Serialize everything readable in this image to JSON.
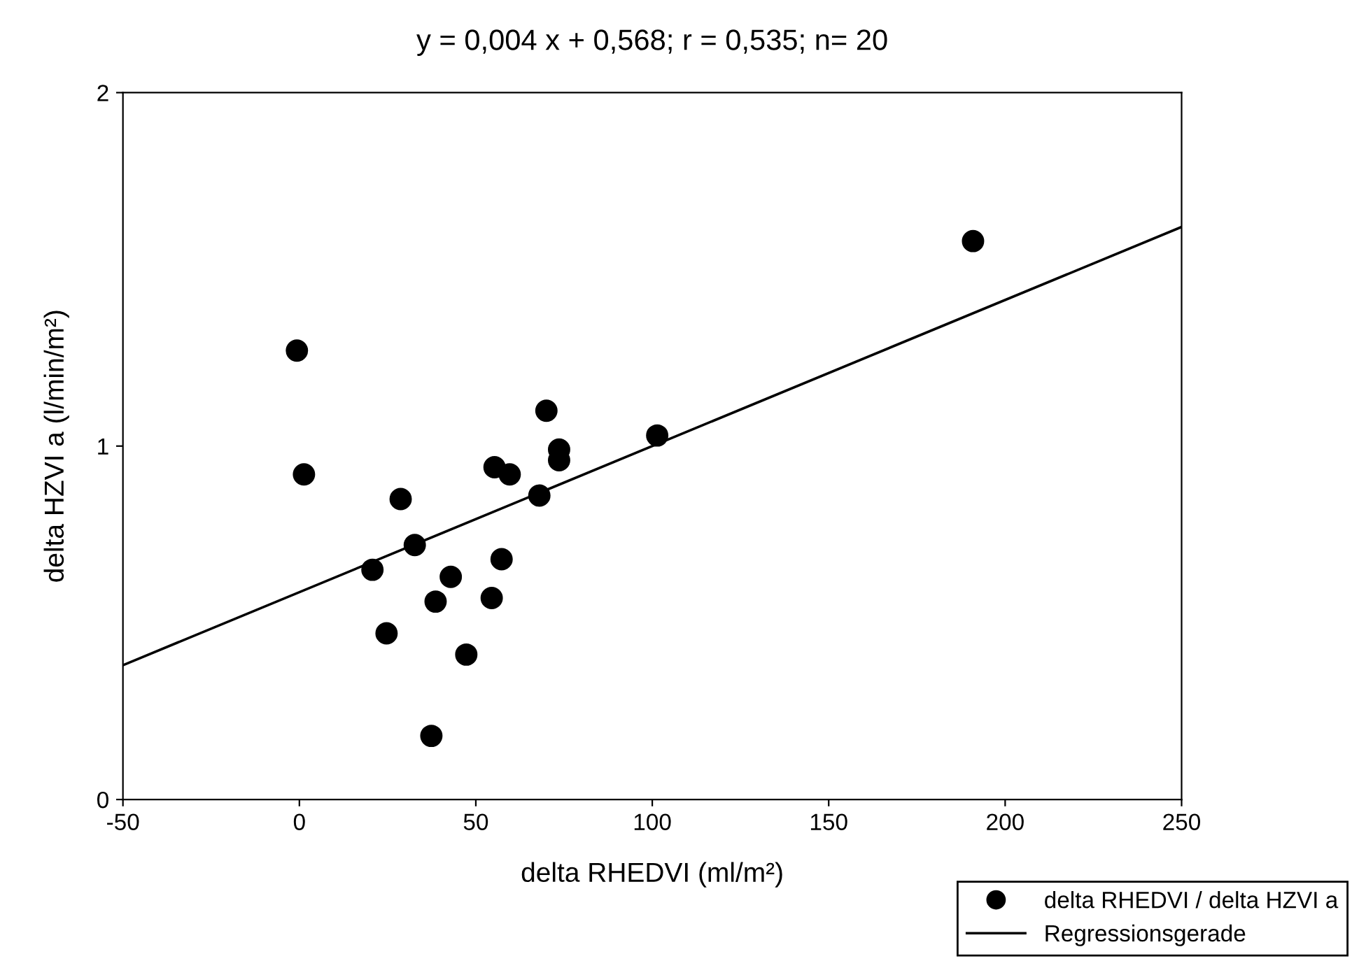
{
  "chart_data": {
    "type": "scatter",
    "title": "y = 0,004 x + 0,568; r = 0,535; n= 20",
    "xlabel": "delta RHEDVI (ml/m²)",
    "ylabel": "delta HZVI a (l/min/m²)",
    "xlim": [
      -50,
      250
    ],
    "xticks": [
      -50,
      0,
      50,
      100,
      150,
      200,
      250
    ],
    "ylim": [
      0,
      2
    ],
    "yticks": [
      0,
      1,
      2
    ],
    "grid": false,
    "legend": "bottom right",
    "series": [
      {
        "name": "delta RHEDVI / delta HZVI a",
        "color": "#000000",
        "marker": "circle",
        "x": [
          -0.7,
          1.3,
          20.7,
          24.7,
          28.7,
          32.7,
          37.4,
          38.6,
          42.9,
          47.3,
          54.5,
          55.3,
          57.3,
          59.6,
          68,
          70,
          73.6,
          73.6,
          101.4,
          190.9
        ],
        "values": [
          1.27,
          0.92,
          0.65,
          0.47,
          0.85,
          0.72,
          0.18,
          0.56,
          0.63,
          0.41,
          0.57,
          0.94,
          0.68,
          0.92,
          0.86,
          1.1,
          0.99,
          0.96,
          1.03,
          1.58
        ]
      },
      {
        "name": "Regressionsgerade",
        "type": "line",
        "color": "#000000",
        "marker": "none",
        "line_style": "solid",
        "x": [
          -50,
          250
        ],
        "values": [
          0.38,
          1.62
        ]
      }
    ]
  }
}
